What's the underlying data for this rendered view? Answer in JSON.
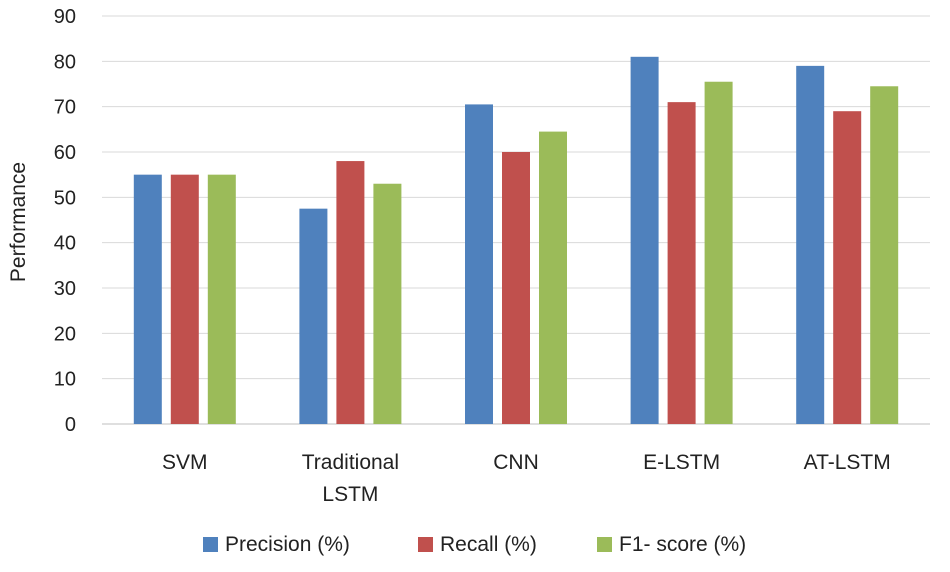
{
  "chart_data": {
    "type": "bar",
    "title": "",
    "xlabel": "",
    "ylabel": "Performance",
    "ylim": [
      0,
      90
    ],
    "yticks": [
      0,
      10,
      20,
      30,
      40,
      50,
      60,
      70,
      80,
      90
    ],
    "grid": true,
    "legend_position": "bottom",
    "categories": [
      [
        "SVM"
      ],
      [
        "Traditional",
        "LSTM"
      ],
      [
        "CNN"
      ],
      [
        "E-LSTM"
      ],
      [
        "AT-LSTM"
      ]
    ],
    "series": [
      {
        "name": "Precision (%)",
        "color": "#4F81BD",
        "values": [
          55,
          47.5,
          70.5,
          81,
          79
        ]
      },
      {
        "name": "Recall (%)",
        "color": "#C0504D",
        "values": [
          55,
          58,
          60,
          71,
          69
        ]
      },
      {
        "name": "F1- score (%)",
        "color": "#9BBB59",
        "values": [
          55,
          53,
          64.5,
          75.5,
          74.5
        ]
      }
    ]
  }
}
